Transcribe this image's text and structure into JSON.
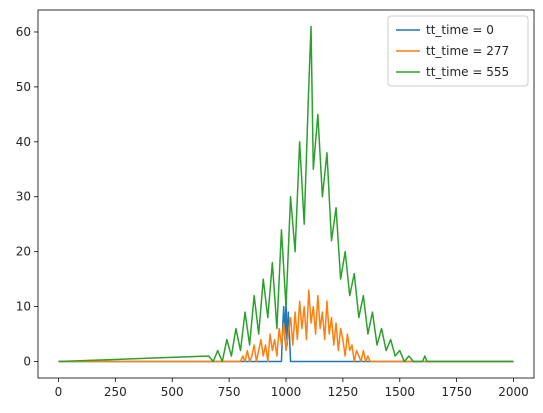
{
  "chart_data": {
    "type": "line",
    "title": "",
    "xlabel": "",
    "ylabel": "",
    "xlim": [
      -90,
      2090
    ],
    "ylim": [
      -3,
      64
    ],
    "xticks": [
      0,
      250,
      500,
      750,
      1000,
      1250,
      1500,
      1750,
      2000
    ],
    "yticks": [
      0,
      10,
      20,
      30,
      40,
      50,
      60
    ],
    "grid": false,
    "legend_position": "top-right",
    "series": [
      {
        "name": "tt_time = 0",
        "color": "#1f77b4",
        "x": [
          0,
          980,
          985,
          990,
          995,
          1000,
          1005,
          1010,
          1015,
          1020,
          2000
        ],
        "y": [
          0,
          0,
          6,
          10,
          4,
          11,
          3,
          9,
          5,
          0,
          0
        ]
      },
      {
        "name": "tt_time = 277",
        "color": "#ff7f0e",
        "x": [
          0,
          800,
          810,
          820,
          830,
          840,
          850,
          860,
          870,
          880,
          890,
          900,
          910,
          920,
          930,
          940,
          950,
          960,
          970,
          980,
          990,
          1000,
          1010,
          1020,
          1030,
          1040,
          1050,
          1060,
          1070,
          1080,
          1090,
          1100,
          1110,
          1120,
          1130,
          1140,
          1150,
          1160,
          1170,
          1180,
          1190,
          1200,
          1210,
          1220,
          1230,
          1240,
          1250,
          1260,
          1270,
          1280,
          1290,
          1300,
          1310,
          1320,
          1330,
          1340,
          1350,
          1360,
          1370,
          1380,
          2000
        ],
        "y": [
          0,
          0,
          1,
          0,
          2,
          0,
          1,
          3,
          0,
          2,
          4,
          1,
          3,
          0,
          5,
          2,
          4,
          1,
          6,
          3,
          7,
          2,
          5,
          8,
          3,
          9,
          4,
          11,
          6,
          10,
          4,
          13,
          7,
          10,
          5,
          12,
          6,
          9,
          4,
          11,
          5,
          8,
          3,
          7,
          2,
          6,
          4,
          1,
          5,
          2,
          3,
          0,
          2,
          1,
          0,
          2,
          0,
          1,
          0,
          0,
          0
        ]
      },
      {
        "name": "tt_time = 555",
        "color": "#2ca02c",
        "x": [
          0,
          660,
          680,
          700,
          720,
          740,
          760,
          780,
          800,
          820,
          840,
          860,
          880,
          900,
          920,
          940,
          960,
          980,
          1000,
          1020,
          1040,
          1060,
          1080,
          1100,
          1110,
          1120,
          1140,
          1160,
          1180,
          1200,
          1220,
          1240,
          1260,
          1280,
          1300,
          1320,
          1340,
          1360,
          1380,
          1400,
          1420,
          1440,
          1460,
          1480,
          1500,
          1520,
          1540,
          1560,
          1580,
          1600,
          1610,
          1620,
          2000
        ],
        "y": [
          0,
          1,
          0,
          2,
          0,
          4,
          1,
          6,
          2,
          9,
          3,
          12,
          5,
          15,
          8,
          18,
          6,
          24,
          10,
          30,
          20,
          40,
          25,
          50,
          61,
          35,
          45,
          30,
          38,
          22,
          28,
          15,
          20,
          12,
          16,
          8,
          12,
          5,
          9,
          3,
          6,
          2,
          4,
          1,
          2,
          0,
          1,
          0,
          0,
          0,
          1,
          0,
          0
        ]
      }
    ]
  }
}
